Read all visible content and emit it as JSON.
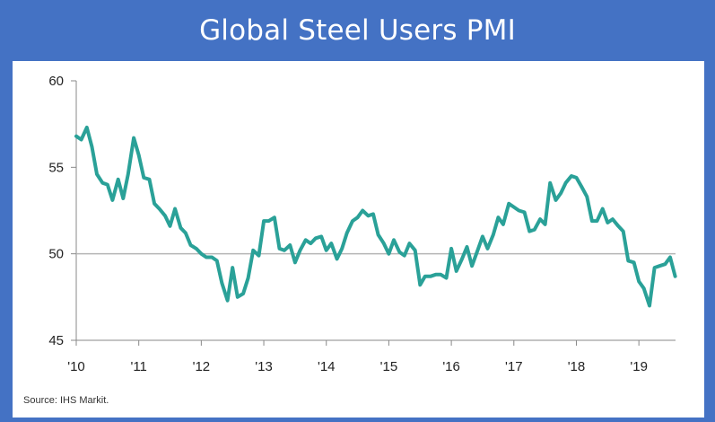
{
  "header": {
    "title": "Global Steel Users PMI"
  },
  "footer": {
    "source": "Source: IHS Markit."
  },
  "colors": {
    "background": "#4472c4",
    "line": "#2aa198",
    "reference_line": "#b5b5b5",
    "axis": "#888888"
  },
  "chart_data": {
    "type": "line",
    "title": "Global Steel Users PMI",
    "xlabel": "",
    "ylabel": "",
    "ylim": [
      45,
      60
    ],
    "xlim": [
      2010.0,
      2019.5
    ],
    "yticks": [
      45,
      50,
      55,
      60
    ],
    "xticks": [
      {
        "label": "'10",
        "x": 2010
      },
      {
        "label": "'11",
        "x": 2011
      },
      {
        "label": "'12",
        "x": 2012
      },
      {
        "label": "'13",
        "x": 2013
      },
      {
        "label": "'14",
        "x": 2014
      },
      {
        "label": "'15",
        "x": 2015
      },
      {
        "label": "'16",
        "x": 2016
      },
      {
        "label": "'17",
        "x": 2017
      },
      {
        "label": "'18",
        "x": 2018
      },
      {
        "label": "'19",
        "x": 2019
      }
    ],
    "reference_line": 50,
    "grid": false,
    "series": [
      {
        "name": "",
        "points": [
          [
            2010.0,
            56.8
          ],
          [
            2010.08,
            56.6
          ],
          [
            2010.17,
            57.3
          ],
          [
            2010.25,
            56.2
          ],
          [
            2010.33,
            54.6
          ],
          [
            2010.42,
            54.1
          ],
          [
            2010.5,
            54.0
          ],
          [
            2010.58,
            53.1
          ],
          [
            2010.67,
            54.3
          ],
          [
            2010.75,
            53.2
          ],
          [
            2010.83,
            54.6
          ],
          [
            2010.92,
            56.7
          ],
          [
            2011.0,
            55.7
          ],
          [
            2011.08,
            54.4
          ],
          [
            2011.17,
            54.3
          ],
          [
            2011.25,
            52.9
          ],
          [
            2011.33,
            52.6
          ],
          [
            2011.42,
            52.2
          ],
          [
            2011.5,
            51.6
          ],
          [
            2011.58,
            52.6
          ],
          [
            2011.67,
            51.5
          ],
          [
            2011.75,
            51.2
          ],
          [
            2011.83,
            50.5
          ],
          [
            2011.92,
            50.3
          ],
          [
            2012.0,
            50.0
          ],
          [
            2012.08,
            49.8
          ],
          [
            2012.17,
            49.8
          ],
          [
            2012.25,
            49.6
          ],
          [
            2012.33,
            48.3
          ],
          [
            2012.42,
            47.3
          ],
          [
            2012.5,
            49.2
          ],
          [
            2012.58,
            47.5
          ],
          [
            2012.67,
            47.7
          ],
          [
            2012.75,
            48.6
          ],
          [
            2012.83,
            50.2
          ],
          [
            2012.92,
            49.9
          ],
          [
            2013.0,
            51.9
          ],
          [
            2013.08,
            51.9
          ],
          [
            2013.17,
            52.1
          ],
          [
            2013.25,
            50.3
          ],
          [
            2013.33,
            50.2
          ],
          [
            2013.42,
            50.5
          ],
          [
            2013.5,
            49.5
          ],
          [
            2013.58,
            50.2
          ],
          [
            2013.67,
            50.8
          ],
          [
            2013.75,
            50.6
          ],
          [
            2013.83,
            50.9
          ],
          [
            2013.92,
            51.0
          ],
          [
            2014.0,
            50.2
          ],
          [
            2014.08,
            50.6
          ],
          [
            2014.17,
            49.7
          ],
          [
            2014.25,
            50.3
          ],
          [
            2014.33,
            51.2
          ],
          [
            2014.42,
            51.9
          ],
          [
            2014.5,
            52.1
          ],
          [
            2014.58,
            52.5
          ],
          [
            2014.67,
            52.2
          ],
          [
            2014.75,
            52.3
          ],
          [
            2014.83,
            51.1
          ],
          [
            2014.92,
            50.6
          ],
          [
            2015.0,
            50.0
          ],
          [
            2015.08,
            50.8
          ],
          [
            2015.17,
            50.1
          ],
          [
            2015.25,
            49.9
          ],
          [
            2015.33,
            50.6
          ],
          [
            2015.42,
            50.2
          ],
          [
            2015.5,
            48.2
          ],
          [
            2015.58,
            48.7
          ],
          [
            2015.67,
            48.7
          ],
          [
            2015.75,
            48.8
          ],
          [
            2015.83,
            48.8
          ],
          [
            2015.92,
            48.6
          ],
          [
            2016.0,
            50.3
          ],
          [
            2016.08,
            49.0
          ],
          [
            2016.17,
            49.7
          ],
          [
            2016.25,
            50.4
          ],
          [
            2016.33,
            49.3
          ],
          [
            2016.42,
            50.2
          ],
          [
            2016.5,
            51.0
          ],
          [
            2016.58,
            50.3
          ],
          [
            2016.67,
            51.1
          ],
          [
            2016.75,
            52.1
          ],
          [
            2016.83,
            51.7
          ],
          [
            2016.92,
            52.9
          ],
          [
            2017.0,
            52.7
          ],
          [
            2017.08,
            52.5
          ],
          [
            2017.17,
            52.4
          ],
          [
            2017.25,
            51.3
          ],
          [
            2017.33,
            51.4
          ],
          [
            2017.42,
            52.0
          ],
          [
            2017.5,
            51.7
          ],
          [
            2017.58,
            54.1
          ],
          [
            2017.67,
            53.1
          ],
          [
            2017.75,
            53.5
          ],
          [
            2017.83,
            54.1
          ],
          [
            2017.92,
            54.5
          ],
          [
            2018.0,
            54.4
          ],
          [
            2018.08,
            53.9
          ],
          [
            2018.17,
            53.3
          ],
          [
            2018.25,
            51.9
          ],
          [
            2018.33,
            51.9
          ],
          [
            2018.42,
            52.6
          ],
          [
            2018.5,
            51.8
          ],
          [
            2018.58,
            52.0
          ],
          [
            2018.67,
            51.6
          ],
          [
            2018.75,
            51.3
          ],
          [
            2018.83,
            49.6
          ],
          [
            2018.92,
            49.5
          ],
          [
            2019.0,
            48.4
          ],
          [
            2019.08,
            48.0
          ],
          [
            2019.17,
            47.0
          ],
          [
            2019.25,
            49.2
          ],
          [
            2019.33,
            49.3
          ],
          [
            2019.42,
            49.4
          ],
          [
            2019.5,
            49.8
          ],
          [
            2019.58,
            48.7
          ]
        ]
      }
    ]
  }
}
